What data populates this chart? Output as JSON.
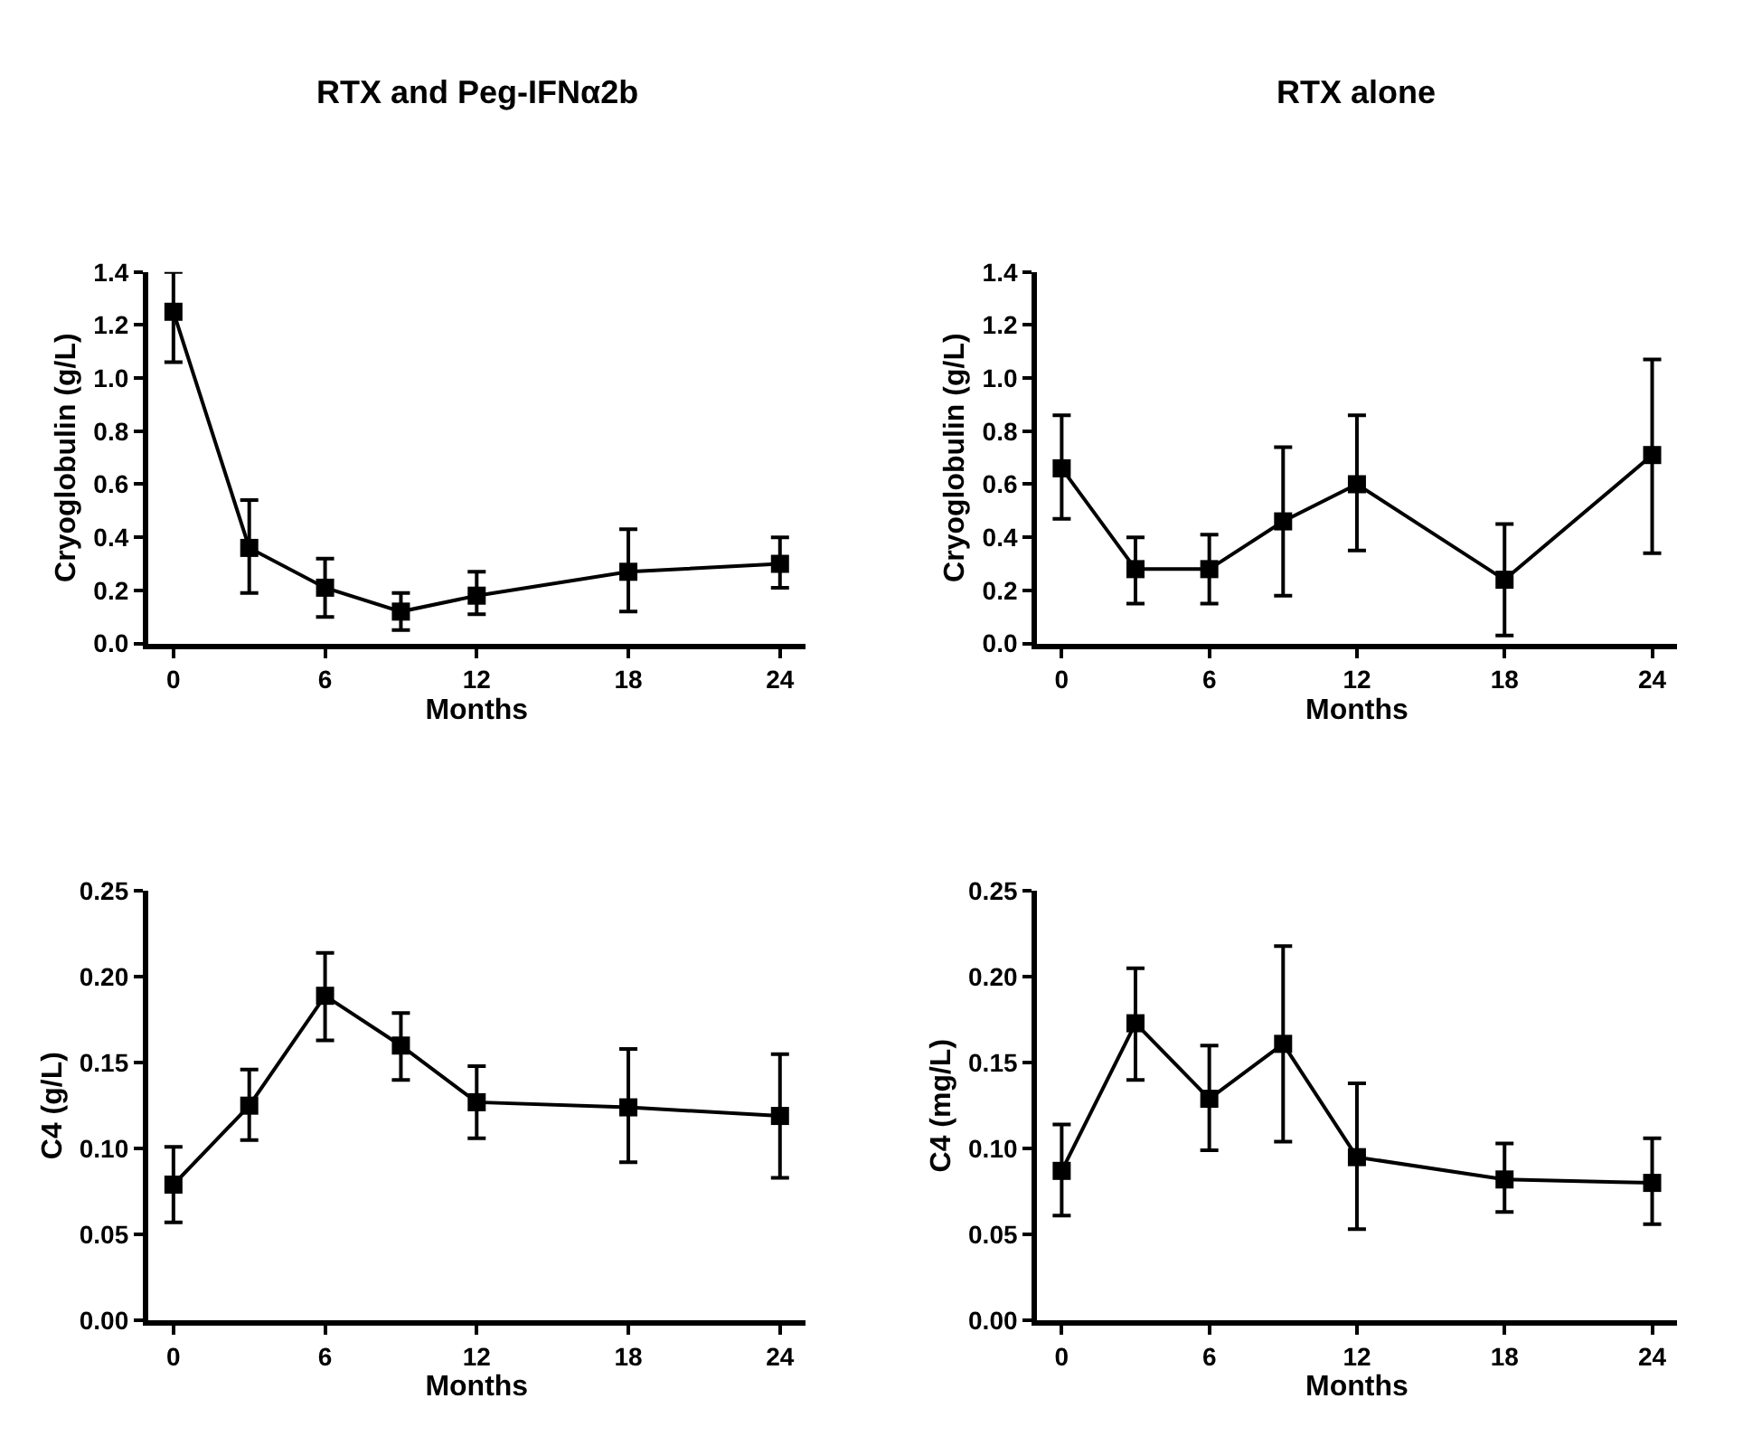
{
  "chart_data": [
    {
      "type": "line",
      "title": "RTX and Peg-IFNα2b",
      "xlabel": "Months",
      "ylabel": "Cryoglobulin (g/L)",
      "x": [
        0,
        3,
        6,
        9,
        12,
        18,
        24
      ],
      "xlim": [
        -1,
        25
      ],
      "xticks": [
        0,
        6,
        12,
        18,
        24
      ],
      "ylim": [
        0,
        1.4
      ],
      "yticks": [
        {
          "value": 0,
          "label": "0.0"
        },
        0.2,
        0.4,
        0.6,
        0.8,
        {
          "value": 1,
          "label": "1.0"
        },
        1.2,
        1.4
      ],
      "marker": "square",
      "line_style": "solid",
      "series": [
        {
          "color": "#000000",
          "values": [
            1.25,
            0.36,
            0.21,
            0.12,
            0.18,
            0.27,
            0.3
          ],
          "errors": [
            [
              1.06,
              1.4
            ],
            [
              0.19,
              0.54
            ],
            [
              0.1,
              0.32
            ],
            [
              0.05,
              0.19
            ],
            [
              0.11,
              0.27
            ],
            [
              0.12,
              0.43
            ],
            [
              0.21,
              0.4
            ]
          ]
        }
      ]
    },
    {
      "type": "line",
      "title": "RTX alone",
      "xlabel": "Months",
      "ylabel": "Cryoglobulin (g/L)",
      "x": [
        0,
        3,
        6,
        9,
        12,
        18,
        24
      ],
      "xlim": [
        -1,
        25
      ],
      "xticks": [
        0,
        6,
        12,
        18,
        24
      ],
      "ylim": [
        0,
        1.4
      ],
      "yticks": [
        {
          "value": 0,
          "label": "0.0"
        },
        0.2,
        0.4,
        0.6,
        0.8,
        {
          "value": 1,
          "label": "1.0"
        },
        1.2,
        1.4
      ],
      "marker": "square",
      "line_style": "solid",
      "series": [
        {
          "color": "#000000",
          "values": [
            0.66,
            0.28,
            0.28,
            0.46,
            0.6,
            0.24,
            0.71
          ],
          "errors": [
            [
              0.47,
              0.86
            ],
            [
              0.15,
              0.4
            ],
            [
              0.15,
              0.41
            ],
            [
              0.18,
              0.74
            ],
            [
              0.35,
              0.86
            ],
            [
              0.03,
              0.45
            ],
            [
              0.34,
              1.07
            ]
          ]
        }
      ]
    },
    {
      "type": "line",
      "xlabel": "Months",
      "ylabel": "C4 (g/L)",
      "x": [
        0,
        3,
        6,
        9,
        12,
        18,
        24
      ],
      "xlim": [
        -1,
        25
      ],
      "xticks": [
        0,
        6,
        12,
        18,
        24
      ],
      "ylim": [
        0,
        0.25
      ],
      "yticks": [
        {
          "value": 0,
          "label": "0.00"
        },
        0.05,
        {
          "value": 0.1,
          "label": "0.10"
        },
        0.15,
        {
          "value": 0.2,
          "label": "0.20"
        },
        0.25
      ],
      "marker": "square",
      "line_style": "solid",
      "series": [
        {
          "color": "#000000",
          "values": [
            0.079,
            0.125,
            0.189,
            0.16,
            0.127,
            0.124,
            0.119
          ],
          "errors": [
            [
              0.057,
              0.101
            ],
            [
              0.105,
              0.146
            ],
            [
              0.163,
              0.214
            ],
            [
              0.14,
              0.179
            ],
            [
              0.106,
              0.148
            ],
            [
              0.092,
              0.158
            ],
            [
              0.083,
              0.155
            ]
          ]
        }
      ]
    },
    {
      "type": "line",
      "xlabel": "Months",
      "ylabel": "C4 (mg/L)",
      "x": [
        0,
        3,
        6,
        9,
        12,
        18,
        24
      ],
      "xlim": [
        -1,
        25
      ],
      "xticks": [
        0,
        6,
        12,
        18,
        24
      ],
      "ylim": [
        0,
        0.25
      ],
      "yticks": [
        {
          "value": 0,
          "label": "0.00"
        },
        0.05,
        {
          "value": 0.1,
          "label": "0.10"
        },
        0.15,
        {
          "value": 0.2,
          "label": "0.20"
        },
        0.25
      ],
      "marker": "square",
      "line_style": "solid",
      "series": [
        {
          "color": "#000000",
          "values": [
            0.087,
            0.173,
            0.129,
            0.161,
            0.095,
            0.082,
            0.08
          ],
          "errors": [
            [
              0.061,
              0.114
            ],
            [
              0.14,
              0.205
            ],
            [
              0.099,
              0.16
            ],
            [
              0.104,
              0.218
            ],
            [
              0.053,
              0.138
            ],
            [
              0.063,
              0.103
            ],
            [
              0.056,
              0.106
            ]
          ]
        }
      ]
    }
  ]
}
